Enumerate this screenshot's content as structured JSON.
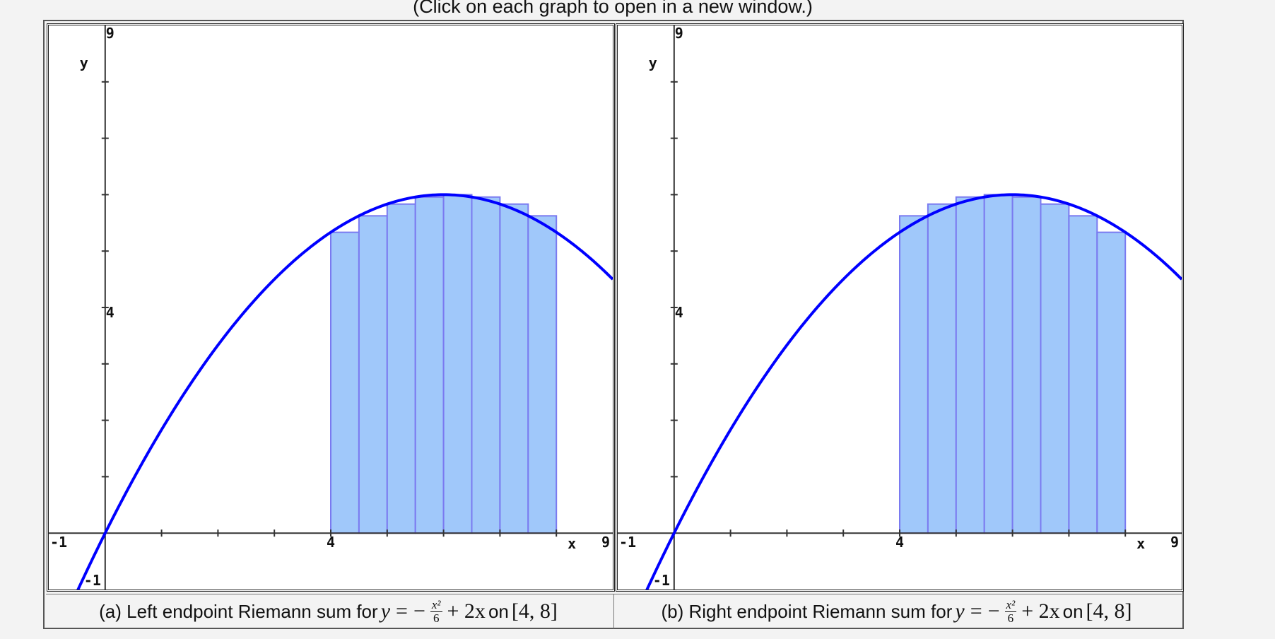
{
  "header": {
    "instruction": "(Click on each graph to open in a new window.)"
  },
  "colors": {
    "curve": "#0000ff",
    "bar_fill": "#a0c8fa",
    "bar_stroke": "#7a7af0",
    "axis": "#333333"
  },
  "graphs": [
    {
      "id": "a",
      "caption_prefix": "(a) Left endpoint Riemann sum for",
      "caption_y": "y",
      "caption_eq": "=",
      "caption_minus": "−",
      "caption_num": "x²",
      "caption_den": "6",
      "caption_tail": "+ 2x",
      "caption_on": "on",
      "caption_interval": "[4, 8]",
      "labels": {
        "y_top": "9",
        "y_mid": "4",
        "y_bottom": "-1",
        "x_left": "-1",
        "x_mid": "4",
        "x_right": "9",
        "x_axis": "x",
        "y_axis": "y"
      }
    },
    {
      "id": "b",
      "caption_prefix": "(b) Right endpoint Riemann sum for",
      "caption_y": "y",
      "caption_eq": "=",
      "caption_minus": "−",
      "caption_num": "x²",
      "caption_den": "6",
      "caption_tail": "+ 2x",
      "caption_on": "on",
      "caption_interval": "[4, 8]",
      "labels": {
        "y_top": "9",
        "y_mid": "4",
        "y_bottom": "-1",
        "x_left": "-1",
        "x_mid": "4",
        "x_right": "9",
        "x_axis": "x",
        "y_axis": "y"
      }
    }
  ],
  "chart_data": [
    {
      "type": "area",
      "title": "(a) Left endpoint Riemann sum for y = -x^2/6 + 2x on [4, 8]",
      "function": "y = -x^2/6 + 2x",
      "xlabel": "x",
      "ylabel": "y",
      "xlim": [
        -1,
        9
      ],
      "ylim": [
        -1,
        9
      ],
      "x_ticks": [
        0,
        1,
        2,
        3,
        4,
        5,
        6,
        7,
        8
      ],
      "y_ticks": [
        0,
        1,
        2,
        3,
        4,
        5,
        6,
        7,
        8
      ],
      "tick_labels": {
        "x": [
          "-1",
          "4",
          "9"
        ],
        "y": [
          "-1",
          "4",
          "9"
        ]
      },
      "method": "left",
      "n": 8,
      "rect_left_x": [
        4,
        4.5,
        5,
        5.5,
        6,
        6.5,
        7,
        7.5
      ],
      "rect_heights": [
        5.333,
        5.625,
        5.833,
        5.958,
        6.0,
        5.958,
        5.833,
        5.625
      ],
      "grid": false
    },
    {
      "type": "area",
      "title": "(b) Right endpoint Riemann sum for y = -x^2/6 + 2x on [4, 8]",
      "function": "y = -x^2/6 + 2x",
      "xlabel": "x",
      "ylabel": "y",
      "xlim": [
        -1,
        9
      ],
      "ylim": [
        -1,
        9
      ],
      "x_ticks": [
        0,
        1,
        2,
        3,
        4,
        5,
        6,
        7,
        8
      ],
      "y_ticks": [
        0,
        1,
        2,
        3,
        4,
        5,
        6,
        7,
        8
      ],
      "tick_labels": {
        "x": [
          "-1",
          "4",
          "9"
        ],
        "y": [
          "-1",
          "4",
          "9"
        ]
      },
      "method": "right",
      "n": 8,
      "rect_left_x": [
        4,
        4.5,
        5,
        5.5,
        6,
        6.5,
        7,
        7.5
      ],
      "rect_heights": [
        5.625,
        5.833,
        5.958,
        6.0,
        5.958,
        5.833,
        5.625,
        5.333
      ],
      "grid": false
    }
  ]
}
